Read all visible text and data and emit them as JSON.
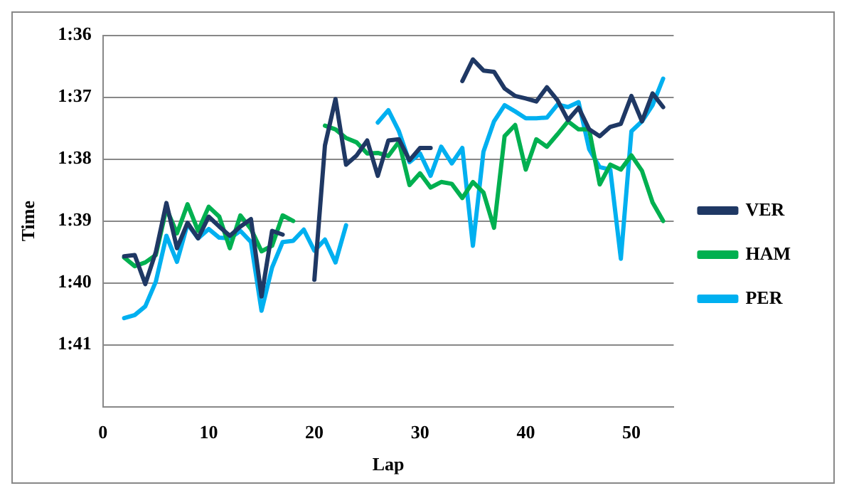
{
  "chart_data": {
    "type": "line",
    "xlabel": "Lap",
    "ylabel": "Time",
    "x": [
      2,
      3,
      4,
      5,
      6,
      7,
      8,
      9,
      10,
      11,
      12,
      13,
      14,
      15,
      16,
      17,
      18,
      19,
      20,
      21,
      22,
      23,
      24,
      25,
      26,
      27,
      28,
      29,
      30,
      31,
      32,
      33,
      34,
      35,
      36,
      37,
      38,
      39,
      40,
      41,
      42,
      43,
      44,
      45,
      46,
      47,
      48,
      49,
      50,
      51,
      52,
      53
    ],
    "series": [
      {
        "name": "VER",
        "color": "#1f3864",
        "values": [
          99.57,
          99.55,
          100.02,
          99.5,
          98.71,
          99.44,
          99.03,
          99.28,
          98.93,
          99.09,
          99.24,
          99.09,
          98.97,
          100.22,
          99.16,
          99.22,
          null,
          null,
          99.95,
          97.78,
          97.03,
          98.09,
          97.94,
          97.7,
          98.27,
          97.7,
          97.68,
          98.02,
          97.82,
          97.82,
          null,
          null,
          96.74,
          96.39,
          96.57,
          96.59,
          96.86,
          96.98,
          97.02,
          97.07,
          96.84,
          97.05,
          97.37,
          97.17,
          97.52,
          97.63,
          97.48,
          97.43,
          96.98,
          97.39,
          96.94,
          97.16
        ]
      },
      {
        "name": "HAM",
        "color": "#00b050",
        "values": [
          99.59,
          99.73,
          99.67,
          99.55,
          98.8,
          99.2,
          98.73,
          99.16,
          98.77,
          98.93,
          99.44,
          98.91,
          99.13,
          99.49,
          99.4,
          98.91,
          99.0,
          null,
          null,
          97.46,
          97.52,
          97.66,
          97.73,
          97.91,
          97.9,
          97.95,
          97.72,
          98.42,
          98.23,
          98.46,
          98.37,
          98.4,
          98.63,
          98.37,
          98.54,
          99.11,
          97.63,
          97.45,
          98.17,
          97.68,
          97.8,
          97.6,
          97.39,
          97.52,
          97.52,
          98.41,
          98.09,
          98.17,
          97.94,
          98.19,
          98.7,
          99.0
        ]
      },
      {
        "name": "PER",
        "color": "#00b0f0",
        "values": [
          100.57,
          100.52,
          100.38,
          99.98,
          99.24,
          99.66,
          99.05,
          99.28,
          99.13,
          99.27,
          99.28,
          99.16,
          99.34,
          100.45,
          99.75,
          99.34,
          99.32,
          99.14,
          99.48,
          99.3,
          99.67,
          99.07,
          null,
          null,
          97.41,
          97.21,
          97.55,
          98.05,
          97.91,
          98.27,
          97.8,
          98.07,
          97.82,
          99.4,
          97.88,
          97.39,
          97.13,
          97.23,
          97.34,
          97.34,
          97.33,
          97.12,
          97.16,
          97.08,
          97.84,
          98.13,
          98.17,
          99.61,
          97.55,
          97.39,
          97.13,
          96.7
        ]
      }
    ],
    "xlim": [
      0,
      54
    ],
    "xticks": [
      0,
      10,
      20,
      30,
      40,
      50
    ],
    "ylim": [
      102,
      96
    ],
    "yticks": [
      {
        "value": 96,
        "label": "1:36"
      },
      {
        "value": 97,
        "label": "1:37"
      },
      {
        "value": 98,
        "label": "1:38"
      },
      {
        "value": 99,
        "label": "1:39"
      },
      {
        "value": 100,
        "label": "1:40"
      },
      {
        "value": 101,
        "label": "1:41"
      }
    ],
    "grid": "y",
    "legend": "right",
    "marker": "none",
    "line_style": "solid"
  }
}
